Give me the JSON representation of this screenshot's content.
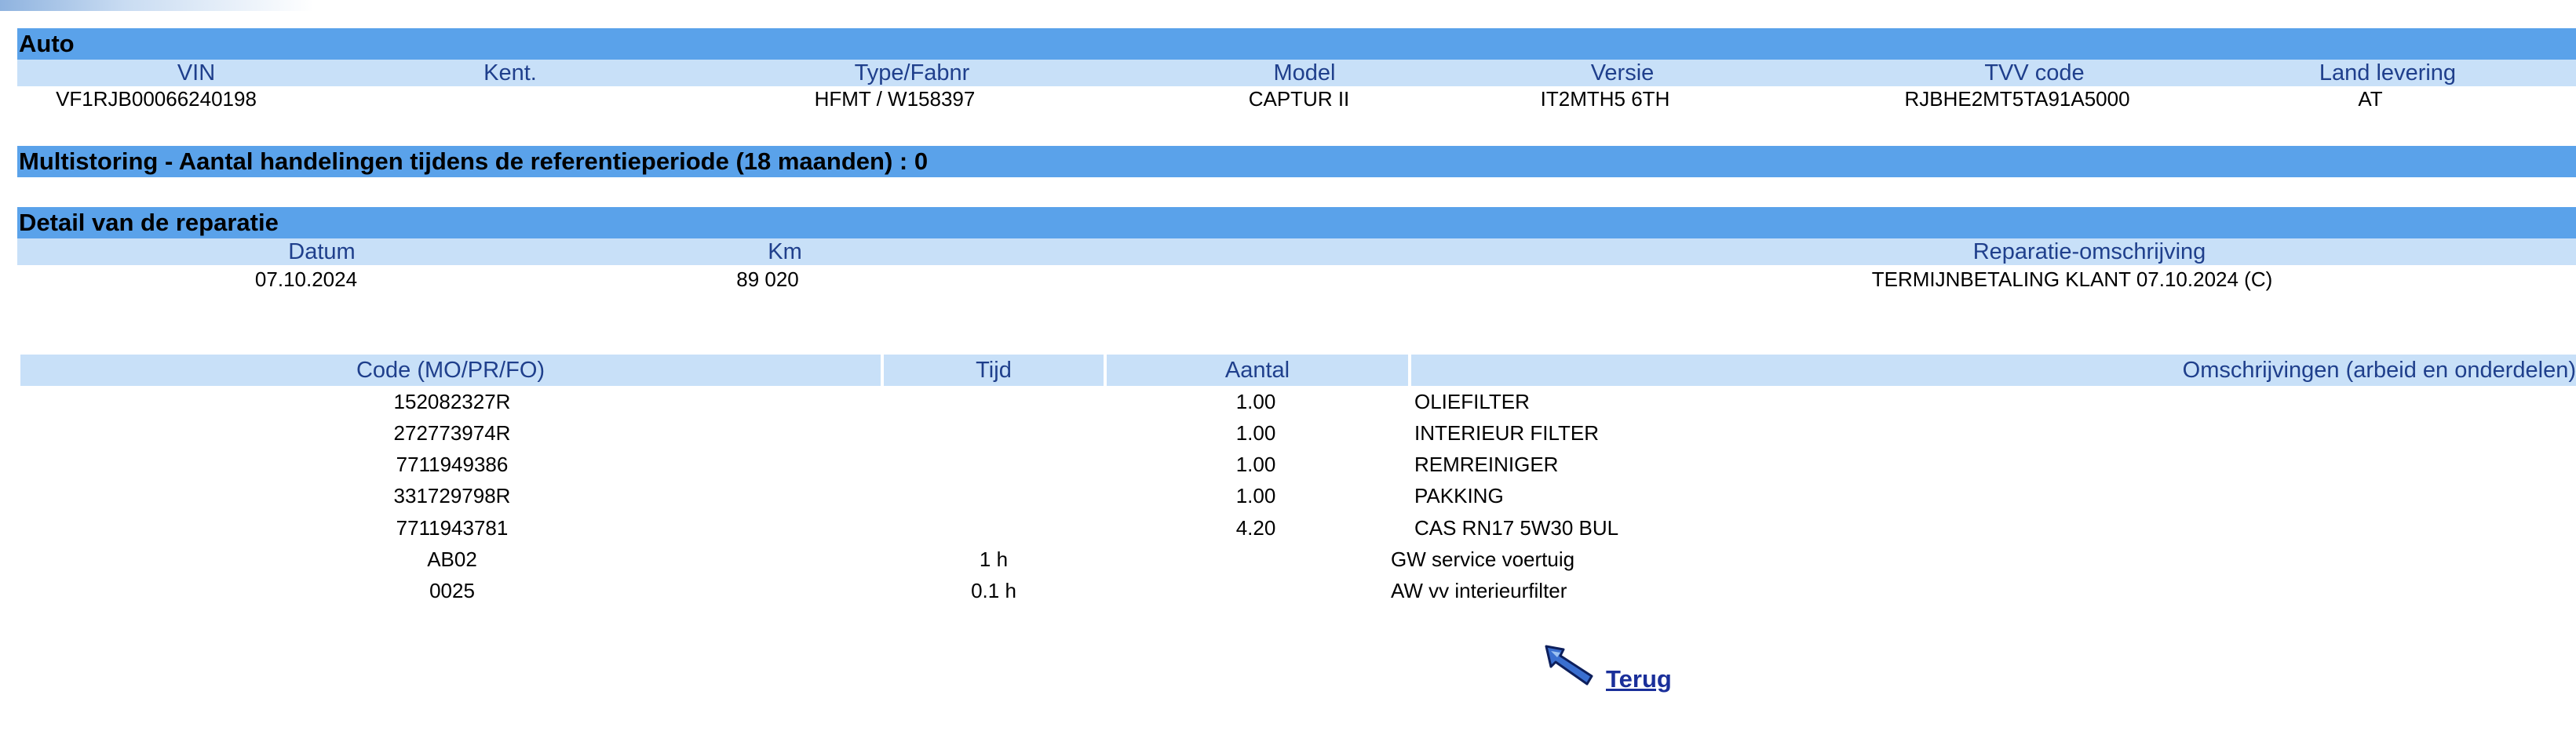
{
  "auto": {
    "title": "Auto",
    "headers": [
      "VIN",
      "Kent.",
      "Type/Fabnr",
      "Model",
      "Versie",
      "TVV code",
      "Land levering"
    ],
    "values": [
      "VF1RJB00066240198",
      "",
      "HFMT / W158397",
      "CAPTUR II",
      "IT2MTH5 6TH",
      "RJBHE2MT5TA91A5000",
      "AT"
    ]
  },
  "multistoring": {
    "title": "Multistoring - Aantal handelingen tijdens de referentieperiode (18 maanden) : 0"
  },
  "detail": {
    "title": "Detail van de reparatie",
    "headers": [
      "Datum",
      "Km",
      "Reparatie-omschrijving"
    ],
    "values": [
      "07.10.2024",
      "89 020",
      "TERMIJNBETALING KLANT 07.10.2024 (C)"
    ]
  },
  "parts": {
    "headers": [
      "Code (MO/PR/FO)",
      "Tijd",
      "Aantal",
      "Omschrijvingen (arbeid en onderdelen)"
    ],
    "rows": [
      {
        "code": "152082327R",
        "tijd": "",
        "aantal": "1.00",
        "omschrijving": "OLIEFILTER"
      },
      {
        "code": "272773974R",
        "tijd": "",
        "aantal": "1.00",
        "omschrijving": "INTERIEUR FILTER"
      },
      {
        "code": "7711949386",
        "tijd": "",
        "aantal": "1.00",
        "omschrijving": "REMREINIGER"
      },
      {
        "code": "331729798R",
        "tijd": "",
        "aantal": "1.00",
        "omschrijving": "PAKKING"
      },
      {
        "code": "7711943781",
        "tijd": "",
        "aantal": "4.20",
        "omschrijving": "CAS RN17 5W30 BUL"
      },
      {
        "code": "AB02",
        "tijd": "1 h",
        "aantal": "",
        "omschrijving": "GW service voertuig"
      },
      {
        "code": "0025",
        "tijd": "0.1 h",
        "aantal": "",
        "omschrijving": "AW vv interieurfilter"
      }
    ]
  },
  "back_link": {
    "label": "Terug",
    "icon": "back-arrow-icon"
  },
  "colors": {
    "section_bar": "#5aa2ea",
    "header_row": "#c8e0f8",
    "header_text": "#1f3f8c",
    "link": "#1a2f9a"
  }
}
